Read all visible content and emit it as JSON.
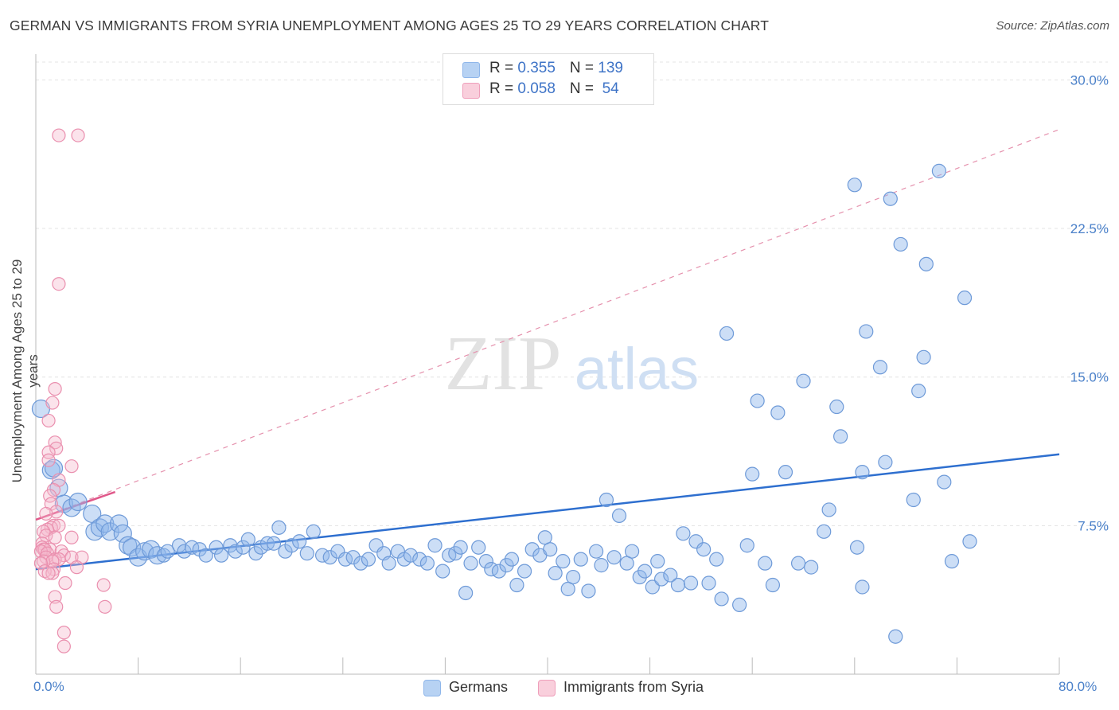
{
  "title": "GERMAN VS IMMIGRANTS FROM SYRIA UNEMPLOYMENT AMONG AGES 25 TO 29 YEARS CORRELATION CHART",
  "source": "Source: ZipAtlas.com",
  "watermark": {
    "zip": "ZIP",
    "atlas": "atlas"
  },
  "legend": {
    "rows": [
      {
        "r_label": "R = ",
        "r_value": "0.355",
        "n_label": "N = ",
        "n_value": "139",
        "color": "#a9c8f0"
      },
      {
        "r_label": "R = ",
        "r_value": "0.058",
        "n_label": "N = ",
        "n_value": " 54",
        "color": "#f6b8cc"
      }
    ]
  },
  "bottom_legend": [
    {
      "label": "Germans",
      "color": "#a9c8f0"
    },
    {
      "label": "Immigrants from Syria",
      "color": "#f6b8cc"
    }
  ],
  "chart_data": {
    "type": "scatter",
    "title": "GERMAN VS IMMIGRANTS FROM SYRIA UNEMPLOYMENT AMONG AGES 25 TO 29 YEARS CORRELATION CHART",
    "xlabel": "",
    "ylabel": "Unemployment Among Ages 25 to 29 years",
    "xlim": [
      0,
      80
    ],
    "ylim": [
      0,
      30
    ],
    "x_tick_labels": [
      "0.0%",
      "80.0%"
    ],
    "y_ticks": [
      7.5,
      15.0,
      22.5,
      30.0
    ],
    "y_tick_labels": [
      "7.5%",
      "15.0%",
      "22.5%",
      "30.0%"
    ],
    "grid": true,
    "legend_position": "top-center",
    "series": [
      {
        "name": "Germans",
        "color": "#8fb6ea",
        "stroke": "#6e9ad8",
        "r": 0.355,
        "n": 139,
        "trend": {
          "x": [
            0,
            80
          ],
          "y": [
            5.3,
            11.1
          ],
          "color": "#2e6fcf"
        },
        "points": [
          [
            0.4,
            13.4
          ],
          [
            1.2,
            10.3
          ],
          [
            1.4,
            10.4
          ],
          [
            1.8,
            9.4
          ],
          [
            2.2,
            8.6
          ],
          [
            2.8,
            8.4
          ],
          [
            3.3,
            8.7
          ],
          [
            4.4,
            8.1
          ],
          [
            4.6,
            7.2
          ],
          [
            5.0,
            7.4
          ],
          [
            5.4,
            7.6
          ],
          [
            5.8,
            7.2
          ],
          [
            6.5,
            7.6
          ],
          [
            6.8,
            7.1
          ],
          [
            7.2,
            6.5
          ],
          [
            7.5,
            6.4
          ],
          [
            8.0,
            5.9
          ],
          [
            8.5,
            6.2
          ],
          [
            9.0,
            6.3
          ],
          [
            9.5,
            6.0
          ],
          [
            10.0,
            6.0
          ],
          [
            10.3,
            6.2
          ],
          [
            11.2,
            6.5
          ],
          [
            11.6,
            6.2
          ],
          [
            12.2,
            6.4
          ],
          [
            12.8,
            6.3
          ],
          [
            13.3,
            6.0
          ],
          [
            14.1,
            6.4
          ],
          [
            14.5,
            6.0
          ],
          [
            15.2,
            6.5
          ],
          [
            15.6,
            6.2
          ],
          [
            16.2,
            6.4
          ],
          [
            16.6,
            6.8
          ],
          [
            17.2,
            6.1
          ],
          [
            17.6,
            6.4
          ],
          [
            18.1,
            6.6
          ],
          [
            18.6,
            6.6
          ],
          [
            19.0,
            7.4
          ],
          [
            19.5,
            6.2
          ],
          [
            20.0,
            6.5
          ],
          [
            20.6,
            6.7
          ],
          [
            21.2,
            6.1
          ],
          [
            21.7,
            7.2
          ],
          [
            22.4,
            6.0
          ],
          [
            23.0,
            5.9
          ],
          [
            23.6,
            6.2
          ],
          [
            24.2,
            5.8
          ],
          [
            24.8,
            5.9
          ],
          [
            25.4,
            5.6
          ],
          [
            26.0,
            5.8
          ],
          [
            26.6,
            6.5
          ],
          [
            27.2,
            6.1
          ],
          [
            27.6,
            5.6
          ],
          [
            28.3,
            6.2
          ],
          [
            28.8,
            5.8
          ],
          [
            29.3,
            6.0
          ],
          [
            30.0,
            5.8
          ],
          [
            30.6,
            5.6
          ],
          [
            31.2,
            6.5
          ],
          [
            31.8,
            5.2
          ],
          [
            32.3,
            6.0
          ],
          [
            32.8,
            6.1
          ],
          [
            33.2,
            6.4
          ],
          [
            33.6,
            4.1
          ],
          [
            34.0,
            5.6
          ],
          [
            34.6,
            6.4
          ],
          [
            35.2,
            5.7
          ],
          [
            35.6,
            5.3
          ],
          [
            36.2,
            5.2
          ],
          [
            36.8,
            5.5
          ],
          [
            37.2,
            5.8
          ],
          [
            37.6,
            4.5
          ],
          [
            38.2,
            5.2
          ],
          [
            38.8,
            6.3
          ],
          [
            39.4,
            6.0
          ],
          [
            39.8,
            6.9
          ],
          [
            40.2,
            6.3
          ],
          [
            40.6,
            5.1
          ],
          [
            41.2,
            5.7
          ],
          [
            41.6,
            4.3
          ],
          [
            42.0,
            4.9
          ],
          [
            42.6,
            5.8
          ],
          [
            43.2,
            4.2
          ],
          [
            43.8,
            6.2
          ],
          [
            44.2,
            5.5
          ],
          [
            44.6,
            8.8
          ],
          [
            45.2,
            5.9
          ],
          [
            45.6,
            8.0
          ],
          [
            46.2,
            5.6
          ],
          [
            46.6,
            6.2
          ],
          [
            47.2,
            4.9
          ],
          [
            47.6,
            5.2
          ],
          [
            48.2,
            4.4
          ],
          [
            48.6,
            5.7
          ],
          [
            48.9,
            4.8
          ],
          [
            49.6,
            5.0
          ],
          [
            50.2,
            4.5
          ],
          [
            50.6,
            7.1
          ],
          [
            51.2,
            4.6
          ],
          [
            51.6,
            6.7
          ],
          [
            52.2,
            6.3
          ],
          [
            52.6,
            4.6
          ],
          [
            53.2,
            5.8
          ],
          [
            53.6,
            3.8
          ],
          [
            54.0,
            17.2
          ],
          [
            55.0,
            3.5
          ],
          [
            55.6,
            6.5
          ],
          [
            56.0,
            10.1
          ],
          [
            56.4,
            13.8
          ],
          [
            57.0,
            5.6
          ],
          [
            57.6,
            4.5
          ],
          [
            58.0,
            13.2
          ],
          [
            58.6,
            10.2
          ],
          [
            59.6,
            5.6
          ],
          [
            60.0,
            14.8
          ],
          [
            60.6,
            5.4
          ],
          [
            61.6,
            7.2
          ],
          [
            62.0,
            8.3
          ],
          [
            62.6,
            13.5
          ],
          [
            62.9,
            12.0
          ],
          [
            64.0,
            24.7
          ],
          [
            64.2,
            6.4
          ],
          [
            64.6,
            10.2
          ],
          [
            64.9,
            17.3
          ],
          [
            64.6,
            4.4
          ],
          [
            66.0,
            15.5
          ],
          [
            66.4,
            10.7
          ],
          [
            66.8,
            24.0
          ],
          [
            67.2,
            1.9
          ],
          [
            67.6,
            21.7
          ],
          [
            68.6,
            8.8
          ],
          [
            69.0,
            14.3
          ],
          [
            69.4,
            16.0
          ],
          [
            69.6,
            20.7
          ],
          [
            70.6,
            25.4
          ],
          [
            71.0,
            9.7
          ],
          [
            71.6,
            5.7
          ],
          [
            72.6,
            19.0
          ],
          [
            73.0,
            6.7
          ]
        ]
      },
      {
        "name": "Immigrants from Syria",
        "color": "#f6b8cc",
        "stroke": "#ea8fae",
        "r": 0.058,
        "n": 54,
        "trend": {
          "x": [
            0,
            6.2
          ],
          "y": [
            7.8,
            9.2
          ],
          "color": "#e0588a"
        },
        "dashed_trend": {
          "x": [
            0,
            80
          ],
          "y": [
            7.8,
            27.5
          ],
          "color": "#e591ad"
        },
        "points": [
          [
            1.8,
            27.2
          ],
          [
            3.3,
            27.2
          ],
          [
            1.8,
            19.7
          ],
          [
            1.5,
            14.4
          ],
          [
            1.3,
            13.7
          ],
          [
            1.0,
            12.8
          ],
          [
            1.5,
            11.7
          ],
          [
            1.6,
            11.4
          ],
          [
            1.0,
            11.2
          ],
          [
            1.0,
            10.8
          ],
          [
            2.8,
            10.5
          ],
          [
            1.8,
            9.8
          ],
          [
            1.4,
            9.3
          ],
          [
            1.1,
            9.0
          ],
          [
            1.2,
            8.6
          ],
          [
            1.6,
            8.2
          ],
          [
            0.8,
            8.1
          ],
          [
            1.4,
            7.5
          ],
          [
            1.2,
            7.4
          ],
          [
            1.8,
            7.5
          ],
          [
            0.9,
            7.3
          ],
          [
            0.6,
            7.2
          ],
          [
            0.8,
            7.0
          ],
          [
            1.5,
            6.9
          ],
          [
            2.8,
            6.9
          ],
          [
            0.5,
            6.6
          ],
          [
            0.5,
            6.4
          ],
          [
            0.6,
            6.3
          ],
          [
            1.1,
            6.3
          ],
          [
            0.7,
            6.3
          ],
          [
            2.0,
            6.2
          ],
          [
            0.4,
            6.2
          ],
          [
            0.9,
            6.1
          ],
          [
            2.2,
            6.0
          ],
          [
            0.8,
            5.9
          ],
          [
            1.5,
            5.8
          ],
          [
            1.8,
            5.8
          ],
          [
            0.6,
            5.7
          ],
          [
            1.3,
            5.7
          ],
          [
            0.4,
            5.6
          ],
          [
            2.8,
            5.9
          ],
          [
            3.6,
            5.9
          ],
          [
            3.2,
            5.4
          ],
          [
            1.4,
            5.3
          ],
          [
            0.7,
            5.2
          ],
          [
            1.3,
            5.1
          ],
          [
            1.0,
            5.1
          ],
          [
            5.3,
            4.5
          ],
          [
            2.3,
            4.6
          ],
          [
            1.5,
            3.9
          ],
          [
            1.6,
            3.4
          ],
          [
            5.4,
            3.4
          ],
          [
            2.2,
            2.1
          ],
          [
            2.2,
            1.4
          ]
        ]
      }
    ]
  }
}
